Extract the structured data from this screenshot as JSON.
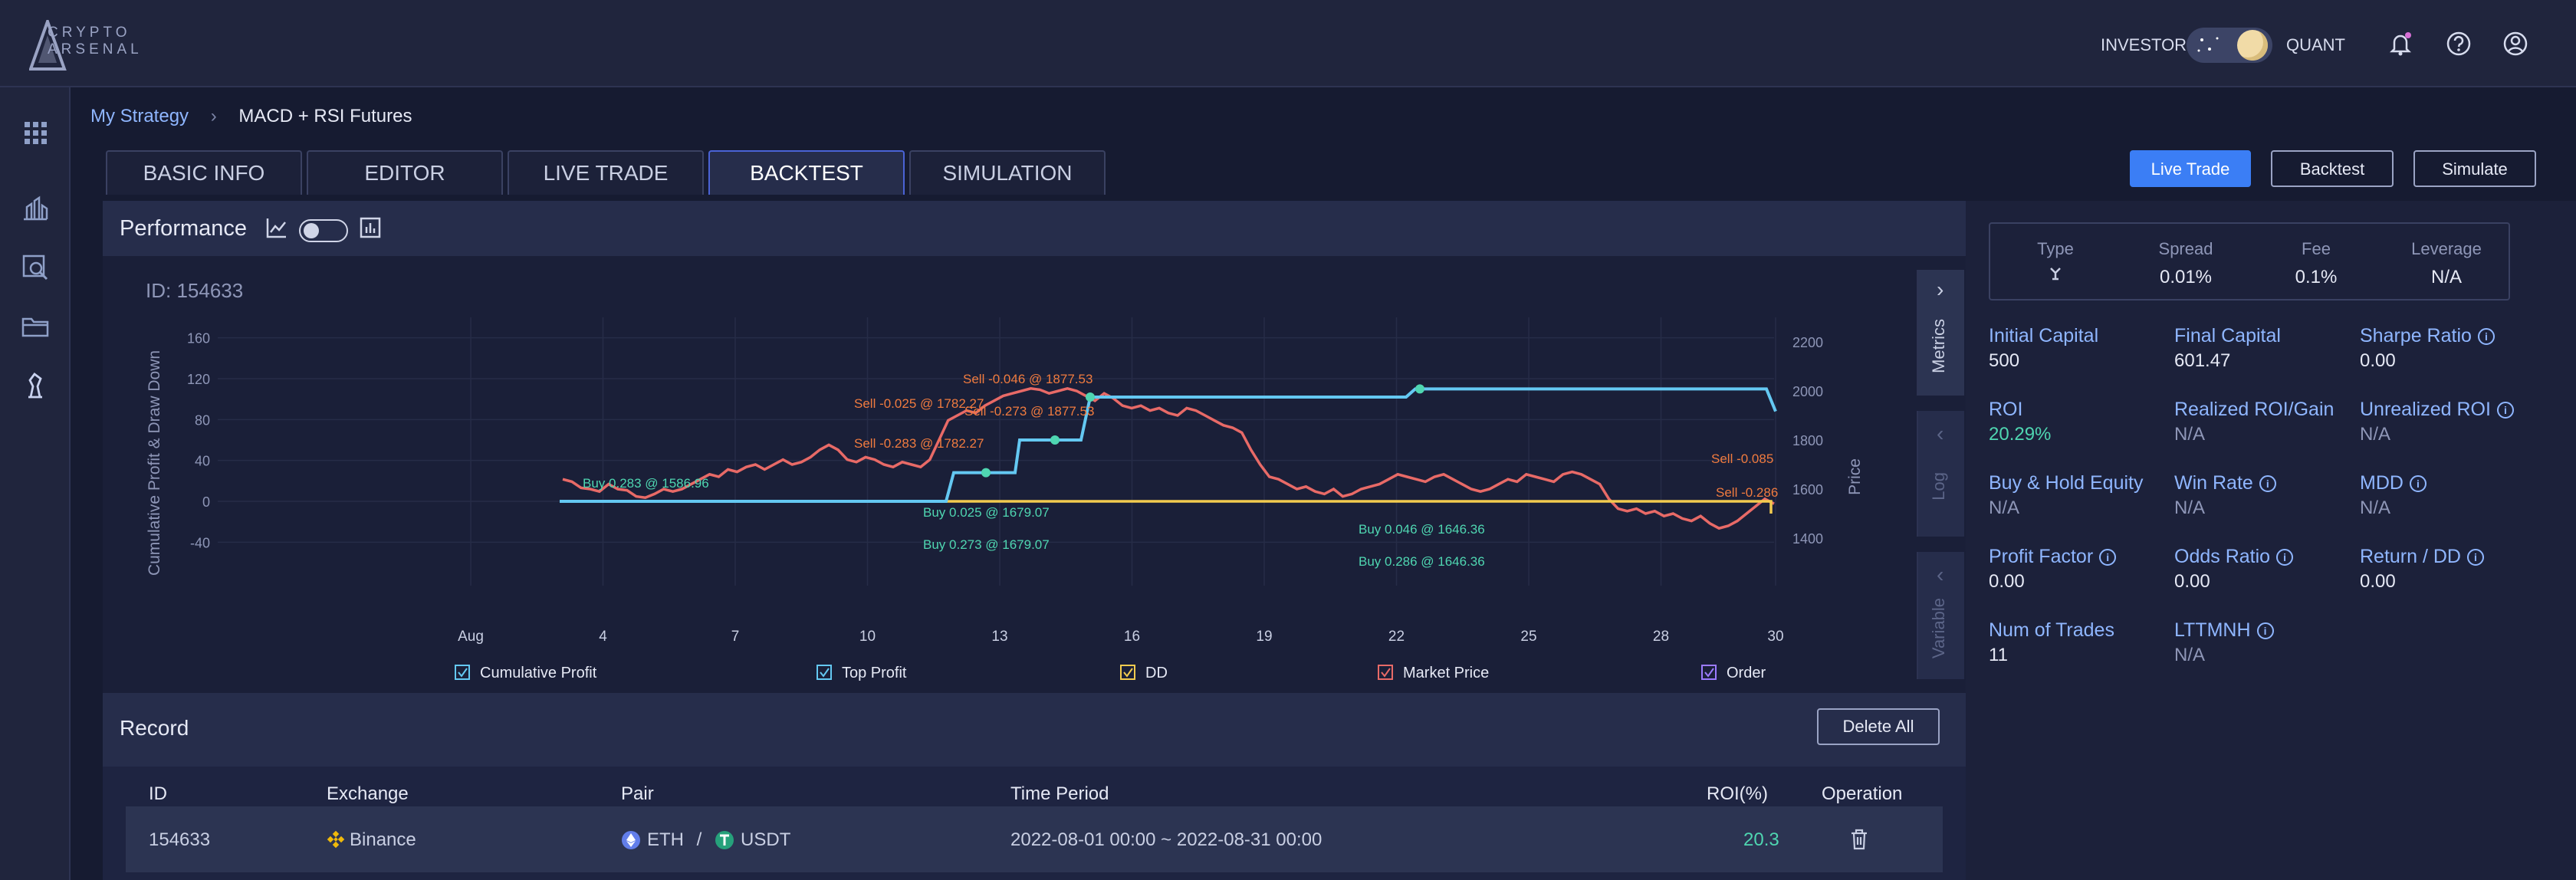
{
  "brand": {
    "logo_text_top": "CRYPTO",
    "logo_text_bottom": "ARSENAL"
  },
  "header": {
    "mode_left": "INVESTOR",
    "mode_right": "QUANT",
    "icons": [
      "bell-icon",
      "help-icon",
      "user-icon"
    ]
  },
  "sidebar": {
    "icons": [
      "apps-icon",
      "market-icon",
      "analysis-icon",
      "folder-icon",
      "strategy-icon"
    ]
  },
  "breadcrumb": {
    "root": "My Strategy",
    "current": "MACD + RSI Futures"
  },
  "tabs": [
    "BASIC INFO",
    "EDITOR",
    "LIVE TRADE",
    "BACKTEST",
    "SIMULATION"
  ],
  "active_tab": "BACKTEST",
  "actions": {
    "live_trade": "Live Trade",
    "backtest": "Backtest",
    "simulate": "Simulate"
  },
  "performance": {
    "title": "Performance"
  },
  "chart": {
    "id_label": "ID: 154633"
  },
  "chart_data": {
    "type": "line",
    "ylabel": "Cumulative Profit & Draw Down",
    "y2label": "Price",
    "yticks": [
      160,
      120,
      80,
      40,
      0,
      -40
    ],
    "y2ticks": [
      2200,
      2000,
      1800,
      1600,
      1400
    ],
    "xticks": [
      "Aug",
      "4",
      "7",
      "10",
      "13",
      "16",
      "19",
      "22",
      "25",
      "28",
      "30"
    ],
    "legend": [
      "Cumulative Profit",
      "Top Profit",
      "DD",
      "Market Price",
      "Order"
    ],
    "colors": {
      "cumulative": "#64c8f2",
      "top": "#64c8f2",
      "dd": "#f2cb4f",
      "market": "#e86a67",
      "order_buy": "#4fd6b1",
      "order_sell": "#f07b3f"
    },
    "annotations": [
      "Buy 0.283 @ 1586.96",
      "Sell -0.025 @ 1782.27",
      "Sell -0.283 @ 1782.27",
      "Sell -0.046 @ 1877.53",
      "Sell -0.273 @ 1877.53",
      "Buy 0.025 @ 1679.07",
      "Buy 0.273 @ 1679.07",
      "Buy 0.046 @ 1646.36",
      "Buy 0.286 @ 1646.36",
      "Sell -0.085",
      "Sell -0.286"
    ]
  },
  "side_tabs": [
    "Metrics",
    "Log",
    "Variable"
  ],
  "record": {
    "title": "Record",
    "delete_all": "Delete All",
    "columns": [
      "ID",
      "Exchange",
      "Pair",
      "Time Period",
      "ROI(%)",
      "Operation"
    ],
    "rows": [
      {
        "id": "154633",
        "exchange": "Binance",
        "base": "ETH",
        "quote": "USDT",
        "period": "2022-08-01 00:00 ~ 2022-08-31 00:00",
        "roi": "20.3"
      }
    ]
  },
  "meta": {
    "type_label": "Type",
    "spread_label": "Spread",
    "spread": "0.01%",
    "fee_label": "Fee",
    "fee": "0.1%",
    "leverage_label": "Leverage",
    "leverage": "N/A"
  },
  "metrics": [
    {
      "label": "Initial Capital",
      "value": "500"
    },
    {
      "label": "Final Capital",
      "value": "601.47"
    },
    {
      "label": "Sharpe Ratio",
      "value": "0.00"
    },
    {
      "label": "ROI",
      "value": "20.29%"
    },
    {
      "label": "Realized ROI/Gain",
      "value": "N/A"
    },
    {
      "label": "Unrealized ROI",
      "value": "N/A"
    },
    {
      "label": "Buy & Hold Equity",
      "value": "N/A"
    },
    {
      "label": "Win Rate",
      "value": "N/A"
    },
    {
      "label": "MDD",
      "value": "N/A"
    },
    {
      "label": "Profit Factor",
      "value": "0.00"
    },
    {
      "label": "Odds Ratio",
      "value": "0.00"
    },
    {
      "label": "Return / DD",
      "value": "0.00"
    },
    {
      "label": "Num of Trades",
      "value": "11"
    },
    {
      "label": "LTTMNH",
      "value": "N/A"
    }
  ]
}
